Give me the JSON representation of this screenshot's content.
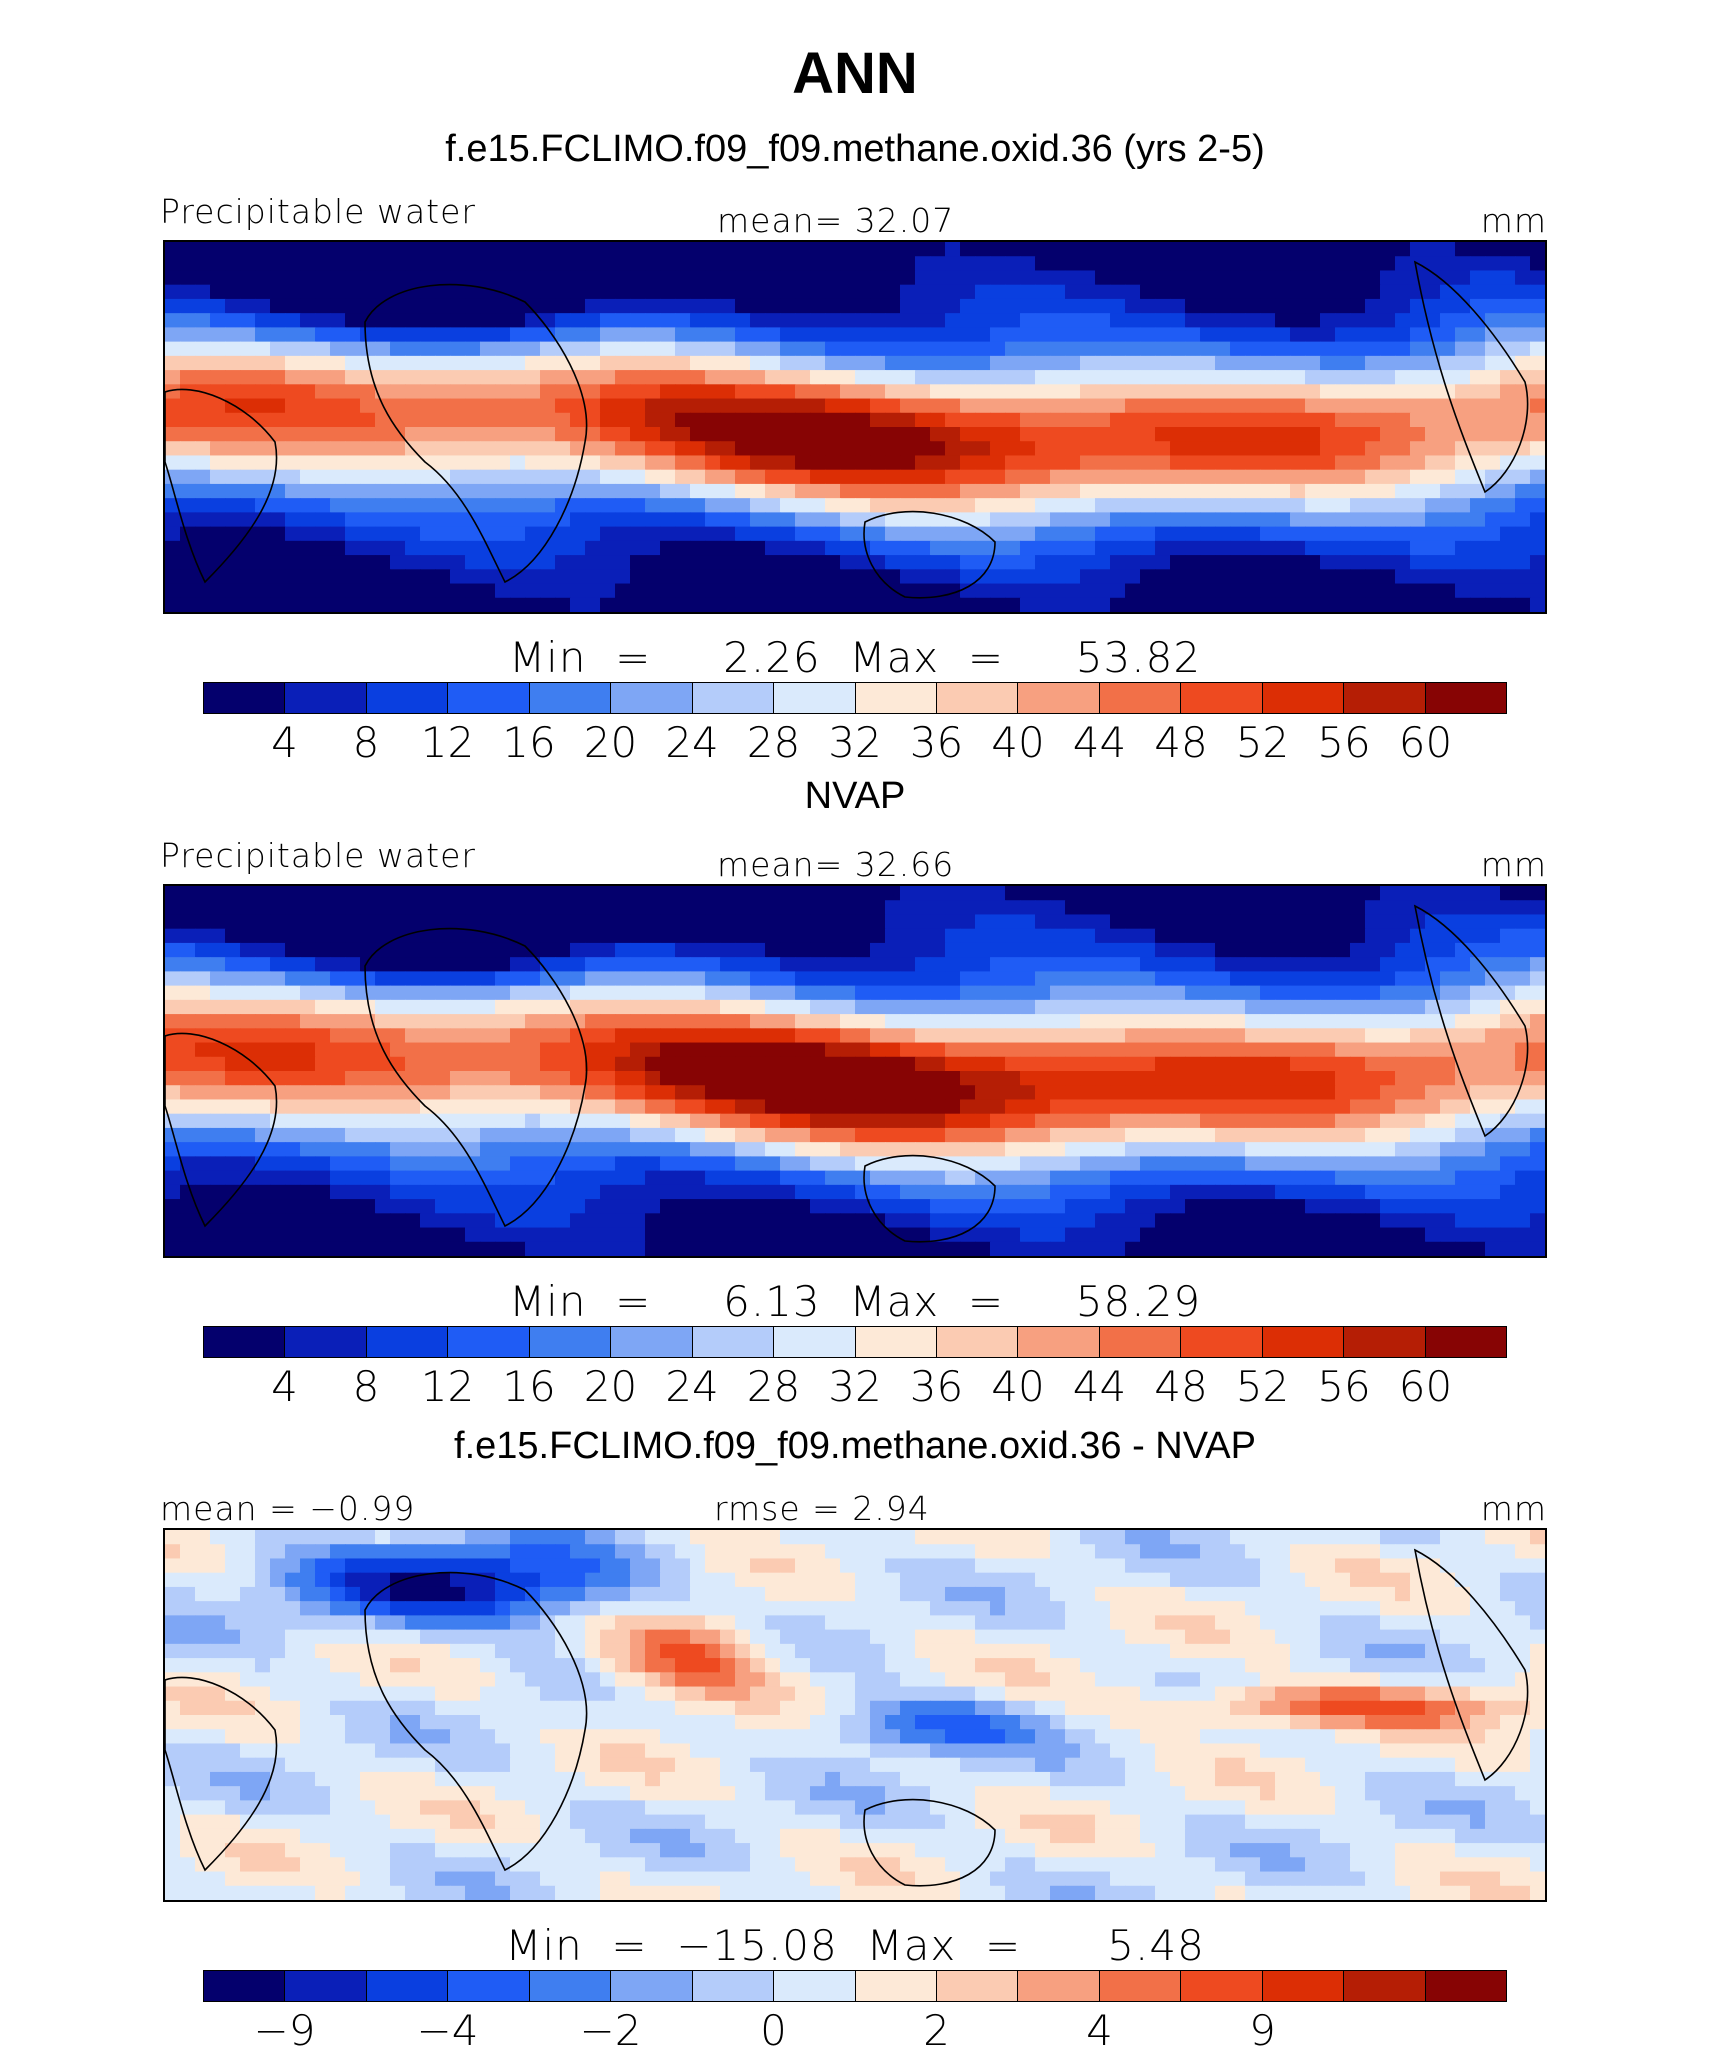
{
  "figure": {
    "title": "ANN",
    "palette_abs": [
      "#04006d",
      "#0a1fb8",
      "#0a3fe0",
      "#1f5cf5",
      "#3f7ef0",
      "#7ea6f5",
      "#b4ccfa",
      "#daeafc",
      "#fde9d7",
      "#fbcbb2",
      "#f7a080",
      "#f27048",
      "#ee4a20",
      "#dc2e05",
      "#b51e05",
      "#870404"
    ],
    "palette_diff": [
      "#04006d",
      "#0a1fb8",
      "#0a3fe0",
      "#1f5cf5",
      "#3f7ef0",
      "#7ea6f5",
      "#b4ccfa",
      "#daeafc",
      "#fde9d7",
      "#fbcbb2",
      "#f7a080",
      "#f27048",
      "#ee4a20",
      "#dc2e05",
      "#b51e05",
      "#870404"
    ]
  },
  "panels": [
    {
      "title": "f.e15.FCLIMO.f09_f09.methane.oxid.36 (yrs 2-5)",
      "left_label": "Precipitable water",
      "center_label": "mean=   32.07",
      "units": "mm",
      "minmax": "Min  =     2.26  Max  =     53.82",
      "ticks": [
        "4",
        "8",
        "12",
        "16",
        "20",
        "24",
        "28",
        "32",
        "36",
        "40",
        "44",
        "48",
        "52",
        "56",
        "60"
      ],
      "kind": "abs",
      "variant": 0
    },
    {
      "title": "NVAP",
      "left_label": "Precipitable water",
      "center_label": "mean=   32.66",
      "units": "mm",
      "minmax": "Min  =     6.13  Max  =     58.29",
      "ticks": [
        "4",
        "8",
        "12",
        "16",
        "20",
        "24",
        "28",
        "32",
        "36",
        "40",
        "44",
        "48",
        "52",
        "56",
        "60"
      ],
      "kind": "abs",
      "variant": 1
    },
    {
      "title": "f.e15.FCLIMO.f09_f09.methane.oxid.36 - NVAP",
      "left_label": "mean  =   −0.99",
      "center_label": "rmse  =    2.94",
      "units": "mm",
      "minmax": "Min  =  −15.08  Max  =      5.48",
      "ticks": [
        "−9",
        "",
        "−4",
        "",
        "−2",
        "",
        "0",
        "",
        "2",
        "",
        "4",
        "",
        "9",
        "",
        ""
      ],
      "kind": "diff",
      "variant": 2
    }
  ]
}
